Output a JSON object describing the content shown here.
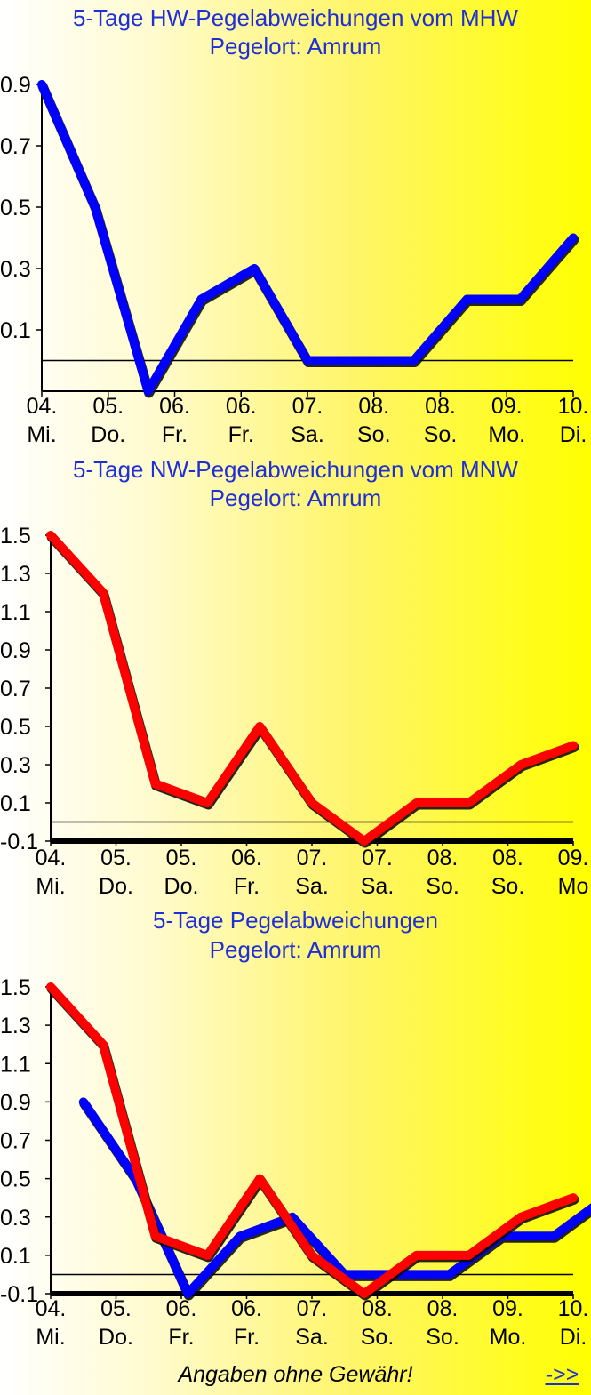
{
  "colors": {
    "title": "#1f2fd6",
    "hw_series": "#0000ff",
    "nw_series": "#ff0000",
    "axis": "#000000"
  },
  "chart_data": [
    {
      "type": "line",
      "title": "5-Tage HW-Pegelabweichungen vom MHW",
      "subtitle": "Pegelort: Amrum",
      "ylim": [
        -0.1,
        0.9
      ],
      "yticks": [
        "0.9",
        "0.7",
        "0.5",
        "0.3",
        "0.1"
      ],
      "xticks": [
        {
          "day": "04.",
          "weekday": "Mi."
        },
        {
          "day": "05.",
          "weekday": "Do."
        },
        {
          "day": "06.",
          "weekday": "Fr."
        },
        {
          "day": "06.",
          "weekday": "Fr."
        },
        {
          "day": "07.",
          "weekday": "Sa."
        },
        {
          "day": "08.",
          "weekday": "So."
        },
        {
          "day": "08.",
          "weekday": "So."
        },
        {
          "day": "09.",
          "weekday": "Mo."
        },
        {
          "day": "10.",
          "weekday": "Di."
        }
      ],
      "reference_line": 0,
      "series": [
        {
          "color": "hw",
          "x": [
            0,
            0.8,
            1.6,
            2.4,
            3.2,
            4.0,
            4.8,
            5.6,
            6.4,
            7.2,
            8.0
          ],
          "values": [
            0.9,
            0.5,
            -0.1,
            0.2,
            0.3,
            0.0,
            0.0,
            0.0,
            0.2,
            0.2,
            0.4
          ]
        }
      ]
    },
    {
      "type": "line",
      "title": "5-Tage NW-Pegelabweichungen vom MNW",
      "subtitle": "Pegelort: Amrum",
      "ylim": [
        -0.1,
        1.5
      ],
      "yticks": [
        "1.5",
        "1.3",
        "1.1",
        "0.9",
        "0.7",
        "0.5",
        "0.3",
        "0.1",
        "-0.1"
      ],
      "xticks": [
        {
          "day": "04.",
          "weekday": "Mi."
        },
        {
          "day": "05.",
          "weekday": "Do."
        },
        {
          "day": "05.",
          "weekday": "Do."
        },
        {
          "day": "06.",
          "weekday": "Fr."
        },
        {
          "day": "07.",
          "weekday": "Sa."
        },
        {
          "day": "07.",
          "weekday": "Sa."
        },
        {
          "day": "08.",
          "weekday": "So."
        },
        {
          "day": "08.",
          "weekday": "So."
        },
        {
          "day": "09.",
          "weekday": "Mo"
        }
      ],
      "reference_line": 0,
      "series": [
        {
          "color": "nw",
          "x": [
            0,
            0.8,
            1.6,
            2.4,
            3.2,
            4.0,
            4.8,
            5.6,
            6.4,
            7.2,
            8.0
          ],
          "values": [
            1.5,
            1.2,
            0.2,
            0.1,
            0.5,
            0.1,
            -0.1,
            0.1,
            0.1,
            0.3,
            0.4
          ]
        }
      ]
    },
    {
      "type": "line",
      "title": "5-Tage Pegelabweichungen",
      "subtitle": "Pegelort: Amrum",
      "ylim": [
        -0.1,
        1.5
      ],
      "yticks": [
        "1.5",
        "1.3",
        "1.1",
        "0.9",
        "0.7",
        "0.5",
        "0.3",
        "0.1",
        "-0.1"
      ],
      "xticks": [
        {
          "day": "04.",
          "weekday": "Mi."
        },
        {
          "day": "05.",
          "weekday": "Do."
        },
        {
          "day": "06.",
          "weekday": "Fr."
        },
        {
          "day": "06.",
          "weekday": "Fr."
        },
        {
          "day": "07.",
          "weekday": "Sa."
        },
        {
          "day": "08.",
          "weekday": "So."
        },
        {
          "day": "08.",
          "weekday": "So."
        },
        {
          "day": "09.",
          "weekday": "Mo."
        },
        {
          "day": "10.",
          "weekday": "Di."
        }
      ],
      "reference_line": 0,
      "series": [
        {
          "color": "hw",
          "x": [
            0.5,
            1.3,
            2.1,
            2.9,
            3.7,
            4.5,
            5.3,
            6.1,
            6.9,
            7.7,
            8.5
          ],
          "values": [
            0.9,
            0.5,
            -0.1,
            0.2,
            0.3,
            0.0,
            0.0,
            0.0,
            0.2,
            0.2,
            0.4
          ]
        },
        {
          "color": "nw",
          "x": [
            0,
            0.8,
            1.6,
            2.4,
            3.2,
            4.0,
            4.8,
            5.6,
            6.4,
            7.2,
            8.0
          ],
          "values": [
            1.5,
            1.2,
            0.2,
            0.1,
            0.5,
            0.1,
            -0.1,
            0.1,
            0.1,
            0.3,
            0.4
          ]
        }
      ]
    }
  ],
  "footer": {
    "disclaimer": "Angaben ohne Gewähr!",
    "next_link": "->>"
  }
}
